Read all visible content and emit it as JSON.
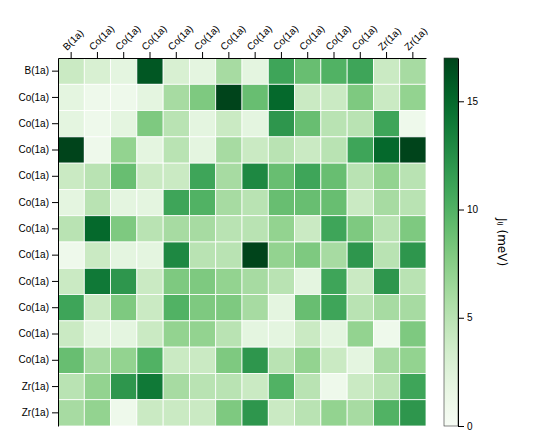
{
  "chart_data": {
    "type": "heatmap",
    "categories": [
      "B(1a)",
      "Co(1a)",
      "Co(1a)",
      "Co(1a)",
      "Co(1a)",
      "Co(1a)",
      "Co(1a)",
      "Co(1a)",
      "Co(1a)",
      "Co(1a)",
      "Co(1a)",
      "Co(1a)",
      "Zr(1a)",
      "Zr(1a)"
    ],
    "values": [
      [
        4,
        3,
        2,
        16,
        3,
        2,
        6,
        2,
        11,
        9,
        10,
        11,
        4,
        6
      ],
      [
        2,
        1,
        1,
        2,
        6,
        8,
        17,
        9,
        15,
        4,
        4,
        8,
        4,
        7
      ],
      [
        2,
        1,
        2,
        8,
        5,
        2,
        4,
        2,
        12,
        9,
        5,
        5,
        11,
        1
      ],
      [
        17,
        1,
        7,
        2,
        5,
        2,
        6,
        4,
        5,
        4,
        5,
        11,
        15,
        17
      ],
      [
        4,
        5,
        9,
        4,
        4,
        11,
        6,
        13,
        9,
        11,
        9,
        5,
        7,
        5
      ],
      [
        2,
        5,
        2,
        2,
        11,
        10,
        6,
        5,
        9,
        9,
        9,
        4,
        6,
        5
      ],
      [
        5,
        15,
        8,
        5,
        6,
        6,
        5,
        5,
        7,
        4,
        11,
        8,
        5,
        8
      ],
      [
        1,
        4,
        2,
        2,
        13,
        5,
        5,
        17,
        7,
        8,
        6,
        12,
        5,
        12
      ],
      [
        4,
        14,
        12,
        4,
        8,
        8,
        7,
        6,
        5,
        2,
        11,
        4,
        12,
        5
      ],
      [
        11,
        4,
        8,
        4,
        10,
        8,
        8,
        6,
        2,
        9,
        11,
        5,
        6,
        6
      ],
      [
        4,
        2,
        2,
        4,
        7,
        7,
        5,
        2,
        2,
        4,
        2,
        7,
        1,
        8
      ],
      [
        9,
        6,
        7,
        10,
        4,
        4,
        8,
        12,
        5,
        7,
        4,
        2,
        6,
        7
      ],
      [
        5,
        7,
        12,
        14,
        6,
        5,
        5,
        4,
        10,
        5,
        1,
        4,
        5,
        11
      ],
      [
        6,
        7,
        1,
        4,
        4,
        4,
        8,
        12,
        4,
        5,
        7,
        6,
        10,
        12
      ]
    ],
    "color": "Greens",
    "colorbar_range": [
      0,
      17
    ],
    "colorbar_ticks": [
      0,
      5,
      10,
      15
    ],
    "colorbar_label": "Jᵢⱼ (meV)",
    "grid": true
  }
}
